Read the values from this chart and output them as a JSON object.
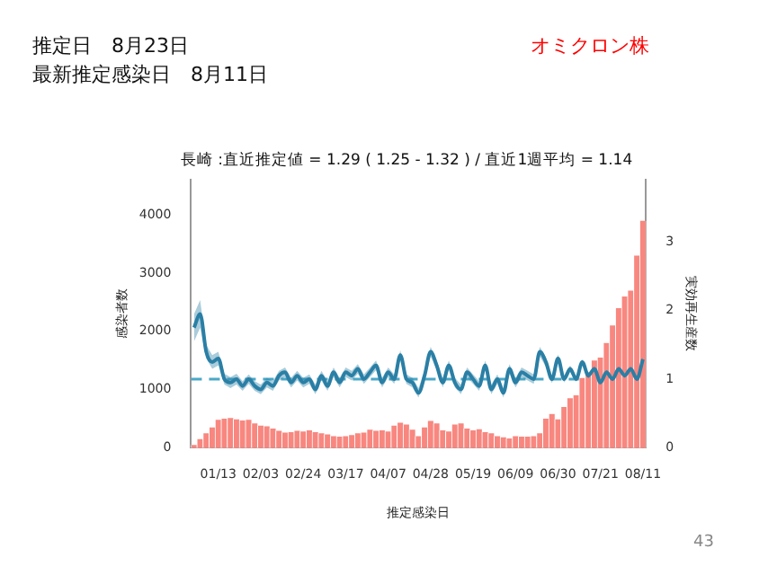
{
  "chart_data": {
    "type": "bar",
    "title": "長崎 :直近推定値 = 1.29 ( 1.25 - 1.32 ) / 直近1週平均 = 1.14",
    "xlabel": "推定感染日",
    "ylabel": "感染者数",
    "y2label": "実効再生産数",
    "annotations": [
      "推定日　8月23日",
      "最新推定感染日　8月11日",
      "オミクロン株",
      "43"
    ],
    "categories": [
      null,
      null,
      null,
      null,
      "01/13",
      null,
      null,
      null,
      null,
      null,
      null,
      "02/03",
      null,
      null,
      null,
      null,
      null,
      null,
      "02/24",
      null,
      null,
      null,
      null,
      null,
      null,
      "03/17",
      null,
      null,
      null,
      null,
      null,
      null,
      "04/07",
      null,
      null,
      null,
      null,
      null,
      null,
      "04/28",
      null,
      null,
      null,
      null,
      null,
      null,
      "05/19",
      null,
      null,
      null,
      null,
      null,
      null,
      "06/09",
      null,
      null,
      null,
      null,
      null,
      null,
      "06/30",
      null,
      null,
      null,
      null,
      null,
      null,
      "07/21",
      null,
      null,
      null,
      null,
      null,
      null,
      "08/11"
    ],
    "series": [
      {
        "color": "#f8877f",
        "values": [
          50,
          150,
          250,
          350,
          480,
          500,
          510,
          490,
          470,
          480,
          420,
          380,
          370,
          330,
          290,
          260,
          270,
          290,
          280,
          300,
          270,
          250,
          230,
          200,
          190,
          200,
          220,
          250,
          260,
          310,
          290,
          300,
          280,
          380,
          430,
          400,
          310,
          200,
          350,
          460,
          420,
          300,
          280,
          400,
          420,
          330,
          300,
          320,
          270,
          250,
          200,
          180,
          160,
          200,
          190,
          190,
          200,
          250,
          500,
          580,
          490,
          700,
          850,
          900,
          1200,
          1300,
          1500,
          1550,
          1800,
          2100,
          2400,
          2600,
          2700,
          3300,
          3900
        ]
      },
      {
        "type": "line",
        "axis": "y2",
        "color": "#2a7fa5",
        "values": [
          1.75,
          1.95,
          1.4,
          1.25,
          1.3,
          1.0,
          0.95,
          1.0,
          0.9,
          1.0,
          0.9,
          0.85,
          0.95,
          0.9,
          1.05,
          1.1,
          0.95,
          1.05,
          0.95,
          1.0,
          0.85,
          1.05,
          0.9,
          1.1,
          0.95,
          1.1,
          1.05,
          1.15,
          1.0,
          1.1,
          1.2,
          0.95,
          1.1,
          1.0,
          1.35,
          1.0,
          0.95,
          0.8,
          1.05,
          1.4,
          1.2,
          0.95,
          1.2,
          0.95,
          0.85,
          1.1,
          1.0,
          0.9,
          1.2,
          0.85,
          1.0,
          0.8,
          1.15,
          0.95,
          1.1,
          1.05,
          1.0,
          1.4,
          1.25,
          1.0,
          1.3,
          1.0,
          1.15,
          1.0,
          1.25,
          1.05,
          1.15,
          0.95,
          1.1,
          1.0,
          1.15,
          1.05,
          1.15,
          1.0,
          1.29
        ],
        "lower": [
          1.55,
          1.75,
          1.3,
          1.15,
          1.2,
          0.92,
          0.87,
          0.92,
          0.83,
          0.93,
          0.83,
          0.78,
          0.88,
          0.83,
          0.98,
          1.03,
          0.88,
          0.98,
          0.88,
          0.93,
          0.78,
          0.98,
          0.83,
          1.03,
          0.88,
          1.03,
          0.98,
          1.08,
          0.93,
          1.03,
          1.13,
          0.88,
          1.03,
          0.93,
          1.28,
          0.93,
          0.88,
          0.73,
          0.98,
          1.33,
          1.13,
          0.88,
          1.13,
          0.88,
          0.78,
          1.03,
          0.93,
          0.83,
          1.13,
          0.78,
          0.93,
          0.73,
          1.08,
          0.88,
          1.03,
          0.98,
          0.93,
          1.33,
          1.18,
          0.94,
          1.24,
          0.95,
          1.1,
          0.96,
          1.21,
          1.01,
          1.12,
          0.92,
          1.07,
          0.97,
          1.12,
          1.02,
          1.12,
          0.97,
          1.25
        ],
        "upper": [
          1.95,
          2.15,
          1.5,
          1.35,
          1.4,
          1.08,
          1.03,
          1.08,
          0.97,
          1.07,
          0.97,
          0.92,
          1.02,
          0.97,
          1.12,
          1.17,
          1.02,
          1.12,
          1.02,
          1.07,
          0.92,
          1.12,
          0.97,
          1.17,
          1.02,
          1.17,
          1.12,
          1.22,
          1.07,
          1.17,
          1.27,
          1.02,
          1.17,
          1.07,
          1.42,
          1.07,
          1.02,
          0.87,
          1.12,
          1.47,
          1.27,
          1.02,
          1.27,
          1.02,
          0.92,
          1.17,
          1.07,
          0.97,
          1.27,
          0.92,
          1.07,
          0.87,
          1.22,
          1.02,
          1.17,
          1.12,
          1.07,
          1.47,
          1.32,
          1.06,
          1.36,
          1.05,
          1.2,
          1.04,
          1.29,
          1.09,
          1.18,
          0.98,
          1.13,
          1.03,
          1.18,
          1.08,
          1.18,
          1.03,
          1.32
        ]
      }
    ],
    "ylim": [
      0,
      4600
    ],
    "yticks": [
      0,
      1000,
      2000,
      3000,
      4000
    ],
    "y2lim": [
      0,
      3.9
    ],
    "y2ticks": [
      0,
      1,
      2,
      3
    ],
    "ref_lines": [
      {
        "axis": "y2",
        "value": 1,
        "color": "#4aa8c8",
        "line_style": "dashed"
      }
    ],
    "grid": false,
    "legend": false
  }
}
